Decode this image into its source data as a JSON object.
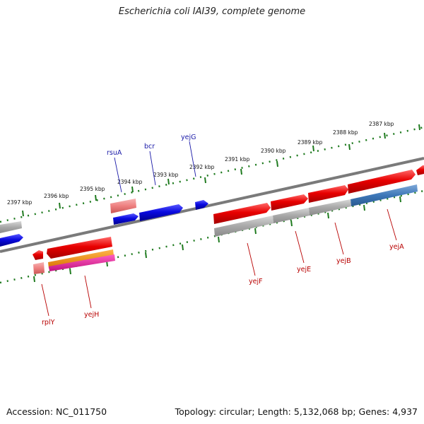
{
  "title": "Escherichia coli IAI39, complete genome",
  "footer": {
    "accession": "Accession: NC_011750",
    "topology": "Topology: circular; Length: 5,132,068 bp; Genes: 4,937"
  },
  "colors": {
    "forward_gene": "#e80000",
    "reverse_gene": "#0a0ae0",
    "pseudo_gene": "#a8a8a8",
    "rrna_like": "#ee7f7f",
    "steel_gene": "#3d77b8",
    "orange_gene": "#f08c00",
    "magenta_gene": "#e0189a",
    "backbone": "#7a7a7a",
    "tick_track": "#1e7a1e",
    "label_blue": "#1a1aa8",
    "label_red": "#b80000"
  },
  "kbp_labels": [
    "2387 kbp",
    "2388 kbp",
    "2389 kbp",
    "2390 kbp",
    "2391 kbp",
    "2392 kbp",
    "2393 kbp",
    "2394 kbp",
    "2395 kbp",
    "2396 kbp",
    "2397 kbp"
  ],
  "gene_labels_top": [
    "yejG",
    "bcr",
    "rsuA"
  ],
  "gene_labels_bottom": [
    "yejA",
    "yejB",
    "yejE",
    "yejF",
    "yejH",
    "rplY"
  ]
}
